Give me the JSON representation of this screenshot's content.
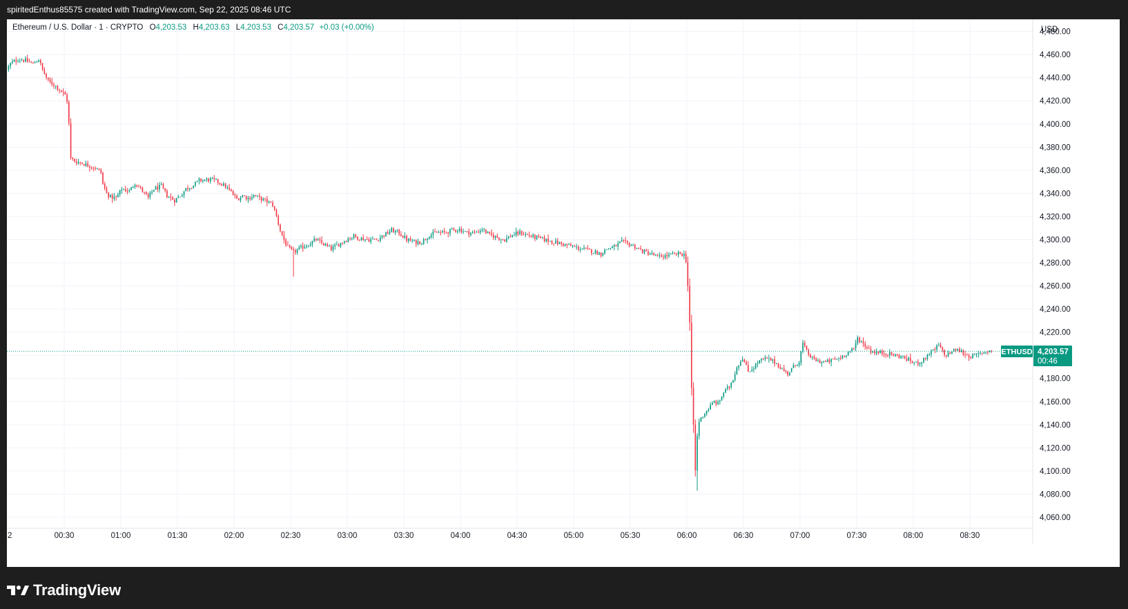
{
  "header": {
    "attribution": "spiritedEnthus85575 created with TradingView.com, Sep 22, 2025 08:46 UTC"
  },
  "legend": {
    "symbol_desc": "Ethereum / U.S. Dollar · 1 · CRYPTO",
    "open_label": "O",
    "open_value": "4,203.53",
    "high_label": "H",
    "high_value": "4,203.63",
    "low_label": "L",
    "low_value": "4,203.53",
    "close_label": "C",
    "close_value": "4,203.57",
    "change": "+0.03 (+0.00%)"
  },
  "price_label": {
    "symbol": "ETHUSD",
    "price": "4,203.57",
    "countdown": "00:46"
  },
  "footer": {
    "brand": "TradingView"
  },
  "colors": {
    "up": "#089981",
    "down": "#f23645",
    "grid": "#f0f3fa",
    "axis_text": "#131722"
  },
  "chart_data": {
    "type": "candlestick",
    "symbol": "ETHUSD",
    "currency": "USD",
    "grid": true,
    "ylim": [
      4050,
      4490
    ],
    "y_ticks": [
      4060,
      4080,
      4100,
      4120,
      4140,
      4160,
      4180,
      4200,
      4220,
      4240,
      4260,
      4280,
      4300,
      4320,
      4340,
      4360,
      4380,
      4400,
      4420,
      4440,
      4460,
      4480
    ],
    "y_tick_labels": [
      "4,060.00",
      "4,080.00",
      "4,100.00",
      "4,120.00",
      "4,140.00",
      "4,160.00",
      "4,180.00",
      "4,200.00",
      "4,220.00",
      "4,240.00",
      "4,260.00",
      "4,280.00",
      "4,300.00",
      "4,320.00",
      "4,340.00",
      "4,360.00",
      "4,380.00",
      "4,400.00",
      "4,420.00",
      "4,440.00",
      "4,460.00",
      "4,480.00"
    ],
    "x_tick_labels": [
      "2",
      "00:30",
      "01:00",
      "01:30",
      "02:00",
      "02:30",
      "03:00",
      "03:30",
      "04:00",
      "04:30",
      "05:00",
      "05:30",
      "06:00",
      "06:30",
      "07:00",
      "07:30",
      "08:00",
      "08:30"
    ],
    "x_tick_minutes": [
      0,
      30,
      60,
      90,
      120,
      150,
      180,
      210,
      240,
      270,
      300,
      330,
      360,
      390,
      420,
      450,
      480,
      510
    ],
    "x_range_minutes": [
      0,
      547
    ],
    "last_price": 4203.57,
    "path_points": [
      [
        0,
        4447
      ],
      [
        2,
        4452
      ],
      [
        6,
        4456
      ],
      [
        10,
        4455
      ],
      [
        14,
        4452
      ],
      [
        17,
        4456
      ],
      [
        19,
        4447
      ],
      [
        22,
        4437
      ],
      [
        25,
        4434
      ],
      [
        28,
        4430
      ],
      [
        31,
        4425
      ],
      [
        32,
        4420
      ],
      [
        33,
        4400
      ],
      [
        34,
        4370
      ],
      [
        36,
        4368
      ],
      [
        40,
        4366
      ],
      [
        44,
        4364
      ],
      [
        47,
        4362
      ],
      [
        50,
        4358
      ],
      [
        51,
        4348
      ],
      [
        53,
        4340
      ],
      [
        55,
        4337
      ],
      [
        58,
        4336
      ],
      [
        61,
        4344
      ],
      [
        65,
        4342
      ],
      [
        68,
        4349
      ],
      [
        72,
        4342
      ],
      [
        75,
        4336
      ],
      [
        78,
        4344
      ],
      [
        82,
        4346
      ],
      [
        85,
        4338
      ],
      [
        89,
        4334
      ],
      [
        92,
        4338
      ],
      [
        95,
        4344
      ],
      [
        99,
        4347
      ],
      [
        102,
        4351
      ],
      [
        108,
        4352
      ],
      [
        112,
        4350
      ],
      [
        116,
        4346
      ],
      [
        119,
        4341
      ],
      [
        122,
        4335
      ],
      [
        125,
        4338
      ],
      [
        128,
        4336
      ],
      [
        131,
        4338
      ],
      [
        134,
        4336
      ],
      [
        138,
        4333
      ],
      [
        141,
        4330
      ],
      [
        143,
        4320
      ],
      [
        145,
        4308
      ],
      [
        147,
        4300
      ],
      [
        149,
        4293
      ],
      [
        152,
        4289
      ],
      [
        156,
        4293
      ],
      [
        160,
        4296
      ],
      [
        164,
        4300
      ],
      [
        168,
        4296
      ],
      [
        172,
        4292
      ],
      [
        176,
        4296
      ],
      [
        180,
        4300
      ],
      [
        184,
        4303
      ],
      [
        188,
        4301
      ],
      [
        192,
        4300
      ],
      [
        196,
        4300
      ],
      [
        200,
        4304
      ],
      [
        204,
        4308
      ],
      [
        208,
        4306
      ],
      [
        212,
        4300
      ],
      [
        216,
        4298
      ],
      [
        220,
        4298
      ],
      [
        224,
        4304
      ],
      [
        228,
        4306
      ],
      [
        232,
        4306
      ],
      [
        236,
        4308
      ],
      [
        240,
        4309
      ],
      [
        244,
        4306
      ],
      [
        248,
        4306
      ],
      [
        252,
        4309
      ],
      [
        256,
        4304
      ],
      [
        260,
        4302
      ],
      [
        264,
        4300
      ],
      [
        268,
        4304
      ],
      [
        272,
        4306
      ],
      [
        276,
        4304
      ],
      [
        280,
        4302
      ],
      [
        285,
        4300
      ],
      [
        290,
        4298
      ],
      [
        295,
        4296
      ],
      [
        300,
        4294
      ],
      [
        305,
        4292
      ],
      [
        310,
        4290
      ],
      [
        315,
        4288
      ],
      [
        318,
        4292
      ],
      [
        322,
        4294
      ],
      [
        326,
        4298
      ],
      [
        330,
        4296
      ],
      [
        333,
        4294
      ],
      [
        337,
        4290
      ],
      [
        341,
        4288
      ],
      [
        345,
        4285
      ],
      [
        349,
        4286
      ],
      [
        353,
        4287
      ],
      [
        357,
        4288
      ],
      [
        359,
        4287
      ],
      [
        360,
        4282
      ],
      [
        361,
        4260
      ],
      [
        362,
        4228
      ],
      [
        363,
        4170
      ],
      [
        364,
        4140
      ],
      [
        365,
        4100
      ],
      [
        366,
        4130
      ],
      [
        367,
        4143
      ],
      [
        369,
        4148
      ],
      [
        371,
        4152
      ],
      [
        373,
        4156
      ],
      [
        375,
        4160
      ],
      [
        377,
        4158
      ],
      [
        380,
        4168
      ],
      [
        383,
        4173
      ],
      [
        385,
        4180
      ],
      [
        387,
        4190
      ],
      [
        390,
        4198
      ],
      [
        393,
        4186
      ],
      [
        396,
        4190
      ],
      [
        399,
        4195
      ],
      [
        402,
        4197
      ],
      [
        405,
        4196
      ],
      [
        408,
        4193
      ],
      [
        411,
        4188
      ],
      [
        414,
        4184
      ],
      [
        417,
        4190
      ],
      [
        420,
        4195
      ],
      [
        422,
        4210
      ],
      [
        424,
        4203
      ],
      [
        427,
        4197
      ],
      [
        430,
        4195
      ],
      [
        434,
        4194
      ],
      [
        438,
        4196
      ],
      [
        442,
        4198
      ],
      [
        446,
        4203
      ],
      [
        449,
        4205
      ],
      [
        451,
        4215
      ],
      [
        454,
        4210
      ],
      [
        458,
        4204
      ],
      [
        462,
        4202
      ],
      [
        466,
        4202
      ],
      [
        470,
        4200
      ],
      [
        474,
        4199
      ],
      [
        478,
        4196
      ],
      [
        482,
        4193
      ],
      [
        486,
        4196
      ],
      [
        489,
        4202
      ],
      [
        492,
        4205
      ],
      [
        494,
        4209
      ],
      [
        497,
        4200
      ],
      [
        500,
        4202
      ],
      [
        503,
        4205
      ],
      [
        506,
        4203
      ],
      [
        509,
        4200
      ],
      [
        512,
        4199
      ],
      [
        515,
        4201
      ],
      [
        518,
        4203
      ],
      [
        521,
        4204
      ]
    ]
  }
}
